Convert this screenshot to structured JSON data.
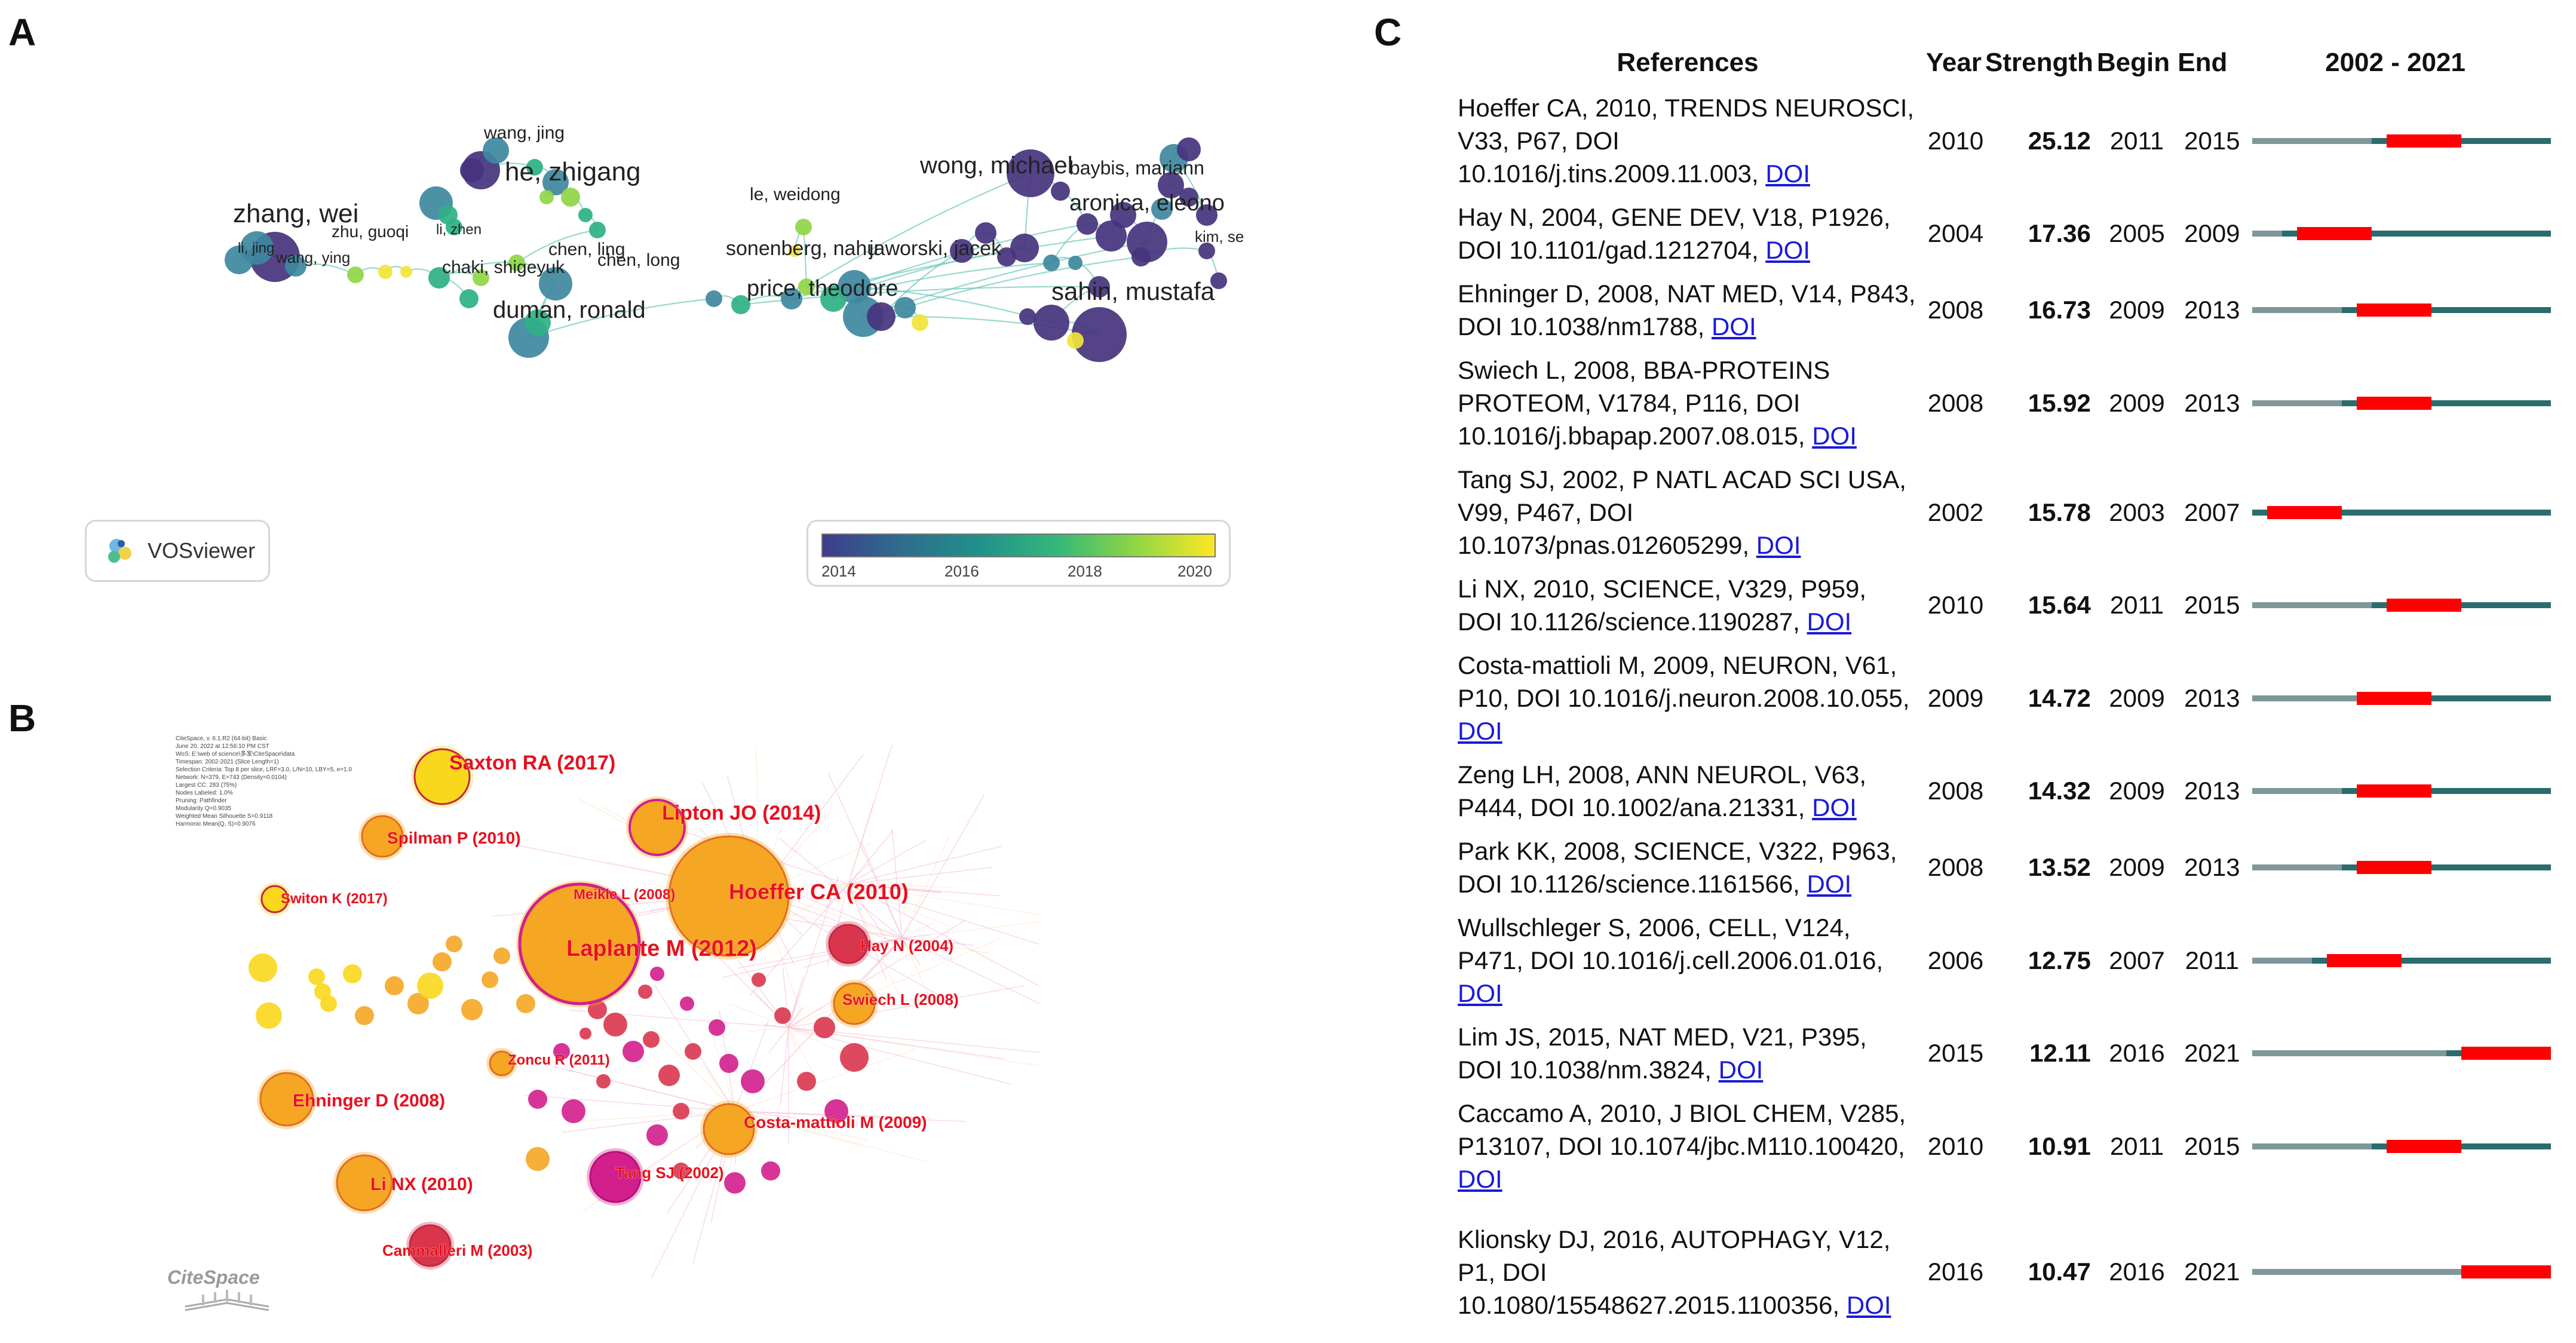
{
  "panels": {
    "a": {
      "letter": "A"
    },
    "b": {
      "letter": "B"
    },
    "c": {
      "letter": "C"
    }
  },
  "panelA": {
    "colors": {
      "link": "#6bc9b8",
      "node_dark": "#46337e",
      "node_mid": "#21918c",
      "node_light": "#fde725"
    },
    "labels": [
      "wang, jing",
      "he, zhigang",
      "zhang, wei",
      "zhu, guoqi",
      "li, jing",
      "wang, ying",
      "li, zhen",
      "chen, ling",
      "chaki, shigeyuk",
      "duman, ronald",
      "chen, long",
      "le, weidong",
      "sonenberg, nahu",
      "price, theodore",
      "jaworski, jacek",
      "wong, michael",
      "baybis, mariann",
      "aronica, eleono",
      "kim, se",
      "sahin, mustafa"
    ],
    "vosviewer": {
      "label": "VOSviewer",
      "icon": "vosviewer-logo-icon"
    },
    "colorbar": {
      "ticks": [
        "2014",
        "2016",
        "2018",
        "2020"
      ],
      "gradient": [
        "#3f3c8c",
        "#2e6d8e",
        "#21918c",
        "#35b779",
        "#90d743",
        "#fde725"
      ]
    }
  },
  "panelB": {
    "meta_lines": [
      "CiteSpace, v. 6.1.R2 (64-bit) Basic",
      "June 20, 2022 at 12:56:10 PM CST",
      "WoS: E:\\web of science\\多发\\CiteSpace\\data",
      "Timespan: 2002-2021 (Slice Length=1)",
      "Selection Criteria: Top 8 per slice, LRF=3.0, L/N=10, LBY=5, e=1.0",
      "Network: N=379, E=743 (Density=0.0104)",
      "Largest CC: 283 (75%)",
      "Nodes Labeled: 1.0%",
      "Pruning: Pathfinder",
      "Modularity Q=0.9035",
      "Weighted Mean Silhouette S=0.9118",
      "Harmonic Mean(Q, S)=0.9076"
    ],
    "colors": {
      "label": "#e8101e",
      "yellow": "#f9d71c",
      "orange": "#f5a623",
      "red": "#d9364e",
      "magenta": "#d21f8c"
    },
    "nodes": [
      "Saxton RA (2017)",
      "Lipton JO (2014)",
      "Spilman P (2010)",
      "Hoeffer CA (2010)",
      "Meikle L (2008)",
      "Switon K (2017)",
      "Laplante M (2012)",
      "Hay N (2004)",
      "Swiech L (2008)",
      "Zoncu R (2011)",
      "Ehninger D (2008)",
      "Costa-mattioli M (2009)",
      "Tang SJ (2002)",
      "Li NX (2010)",
      "Cammalleri M (2003)"
    ],
    "logo": "CiteSpace"
  },
  "panelC": {
    "headers": {
      "references": "References",
      "year": "Year",
      "strength": "Strength",
      "begin": "Begin",
      "end": "End",
      "span": "2002 - 2021"
    },
    "range": {
      "start": 2002,
      "end": 2021
    },
    "colors": {
      "before": "#7f979b",
      "burst": "#fe0000",
      "after": "#2b6c6e",
      "doi_link": "#1a1ad9"
    },
    "rows": [
      {
        "ref": "Hoeffer CA, 2010, TRENDS NEUROSCI, V33, P67, DOI 10.1016/j.tins.2009.11.003,",
        "doi": "DOI",
        "year": "2010",
        "strength": "25.12",
        "begin": "2011",
        "end": "2015"
      },
      {
        "ref": "Hay N, 2004, GENE DEV, V18, P1926, DOI 10.1101/gad.1212704,",
        "doi": "DOI",
        "year": "2004",
        "strength": "17.36",
        "begin": "2005",
        "end": "2009"
      },
      {
        "ref": "Ehninger D, 2008, NAT MED, V14, P843, DOI 10.1038/nm1788,",
        "doi": "DOI",
        "year": "2008",
        "strength": "16.73",
        "begin": "2009",
        "end": "2013"
      },
      {
        "ref": "Swiech L, 2008, BBA-PROTEINS PROTEOM, V1784, P116, DOI 10.1016/j.bbapap.2007.08.015,",
        "doi": "DOI",
        "year": "2008",
        "strength": "15.92",
        "begin": "2009",
        "end": "2013"
      },
      {
        "ref": "Tang SJ, 2002, P NATL ACAD SCI USA, V99, P467, DOI 10.1073/pnas.012605299,",
        "doi": "DOI",
        "year": "2002",
        "strength": "15.78",
        "begin": "2003",
        "end": "2007"
      },
      {
        "ref": "Li NX, 2010, SCIENCE, V329, P959, DOI 10.1126/science.1190287,",
        "doi": "DOI",
        "year": "2010",
        "strength": "15.64",
        "begin": "2011",
        "end": "2015"
      },
      {
        "ref": "Costa-mattioli M, 2009, NEURON, V61, P10, DOI 10.1016/j.neuron.2008.10.055,",
        "doi": "DOI",
        "year": "2009",
        "strength": "14.72",
        "begin": "2009",
        "end": "2013"
      },
      {
        "ref": "Zeng LH, 2008, ANN NEUROL, V63, P444, DOI 10.1002/ana.21331,",
        "doi": "DOI",
        "year": "2008",
        "strength": "14.32",
        "begin": "2009",
        "end": "2013"
      },
      {
        "ref": "Park KK, 2008, SCIENCE, V322, P963, DOI 10.1126/science.1161566,",
        "doi": "DOI",
        "year": "2008",
        "strength": "13.52",
        "begin": "2009",
        "end": "2013"
      },
      {
        "ref": "Wullschleger S, 2006, CELL, V124, P471, DOI 10.1016/j.cell.2006.01.016,",
        "doi": "DOI",
        "year": "2006",
        "strength": "12.75",
        "begin": "2007",
        "end": "2011"
      },
      {
        "ref": "Lim JS, 2015, NAT MED, V21, P395, DOI 10.1038/nm.3824,",
        "doi": "DOI",
        "year": "2015",
        "strength": "12.11",
        "begin": "2016",
        "end": "2021"
      },
      {
        "ref": "Caccamo A, 2010, J BIOL CHEM, V285, P13107, DOI 10.1074/jbc.M110.100420,",
        "doi": "DOI",
        "year": "2010",
        "strength": "10.91",
        "begin": "2011",
        "end": "2015"
      },
      {
        "ref": "Klionsky DJ, 2016, AUTOPHAGY, V12, P1, DOI 10.1080/15548627.2015.1100356,",
        "doi": "DOI",
        "year": "2016",
        "strength": "10.47",
        "begin": "2016",
        "end": "2021"
      }
    ]
  }
}
